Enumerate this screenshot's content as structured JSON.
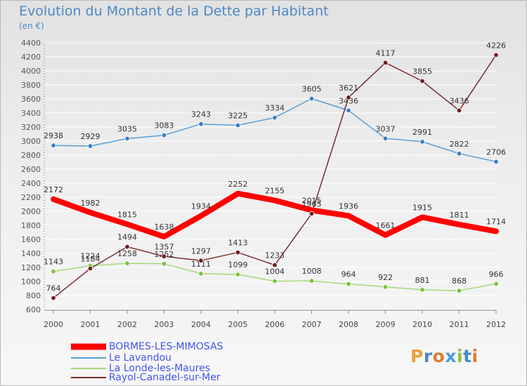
{
  "header": {
    "title": "Evolution du Montant de la Dette par Habitant",
    "unit": "(en €)"
  },
  "logo": {
    "text": "Proxiti",
    "letter_colors": [
      "#e6a23a",
      "#4d88c4",
      "#e07b2f",
      "#4a9ae0",
      "#8ac33f",
      "#4d88c4",
      "#e07b2f"
    ]
  },
  "chart_data": {
    "type": "line",
    "title": "Evolution du Montant de la Dette par Habitant",
    "subtitle": "(en €)",
    "xlabel": "",
    "ylabel": "",
    "categories": [
      "2000",
      "2001",
      "2002",
      "2003",
      "2004",
      "2005",
      "2006",
      "2007",
      "2008",
      "2009",
      "2010",
      "2011",
      "2012"
    ],
    "ylim": [
      600,
      4400
    ],
    "yticks": [
      600,
      800,
      1000,
      1200,
      1400,
      1600,
      1800,
      2000,
      2200,
      2400,
      2600,
      2800,
      3000,
      3200,
      3400,
      3600,
      3800,
      4000,
      4200,
      4400
    ],
    "grid": "horizontal",
    "legend_position": "bottom-left",
    "series": [
      {
        "name": "Le Lavandou",
        "color": "#5a9fd4",
        "marker": "#3a7fc4",
        "values": [
          2938,
          2929,
          3035,
          3083,
          3243,
          3225,
          3334,
          3605,
          3436,
          3037,
          2991,
          2822,
          2706
        ]
      },
      {
        "name": "La Londe-les-Maures",
        "color": "#a5d87a",
        "marker": "#7cc23b",
        "values": [
          1143,
          1224,
          1258,
          1252,
          1111,
          1099,
          1004,
          1008,
          964,
          922,
          881,
          868,
          966
        ]
      },
      {
        "name": "Rayol-Canadel-sur-Mer",
        "color": "#7a2e2e",
        "marker": "#6e1e1e",
        "values": [
          764,
          1184,
          1494,
          1357,
          1297,
          1413,
          1233,
          1965,
          3621,
          4117,
          3855,
          3436,
          4226
        ]
      },
      {
        "name": "BORMES-LES-MIMOSAS",
        "color": "#ff0000",
        "marker": "#ff0000",
        "highlight": true,
        "values": [
          2172,
          1982,
          1815,
          1638,
          1934,
          2252,
          2155,
          2015,
          1936,
          1661,
          1915,
          1811,
          1714
        ]
      }
    ]
  },
  "legend": [
    {
      "label": "BORMES-LES-MIMOSAS",
      "color": "#ff0000",
      "thick": true
    },
    {
      "label": "Le Lavandou",
      "color": "#5a9fd4",
      "thick": false
    },
    {
      "label": "La Londe-les-Maures",
      "color": "#a5d87a",
      "thick": false
    },
    {
      "label": "Rayol-Canadel-sur-Mer",
      "color": "#7a2e2e",
      "thick": false
    }
  ]
}
